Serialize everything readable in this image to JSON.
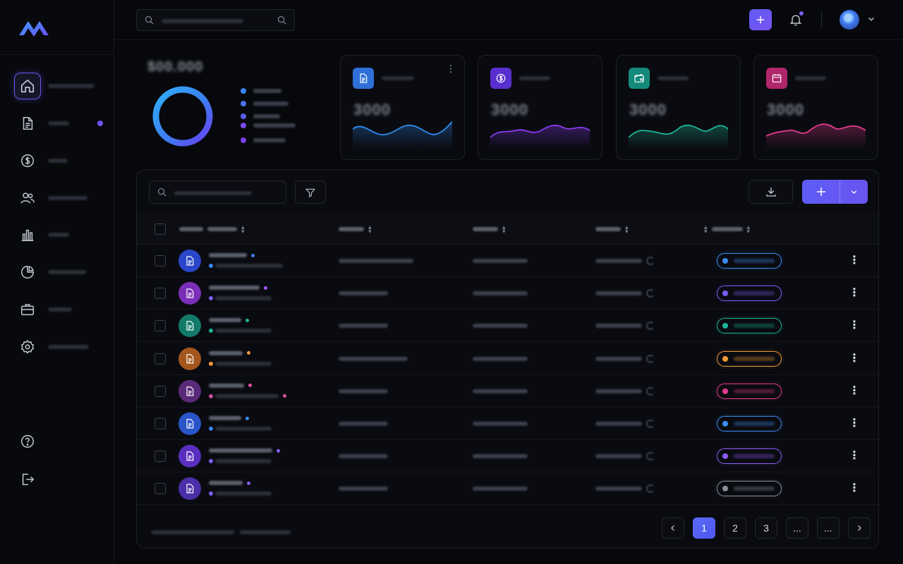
{
  "colors": {
    "accent": "#6b56f0",
    "blue": "#2f8cf0",
    "violet": "#7a4af2",
    "teal": "#1db59a",
    "orange": "#f29a3a",
    "pink": "#e03b8c",
    "gray": "#8a8f99"
  },
  "sidebar": {
    "items": [
      {
        "icon": "home-icon",
        "active": true
      },
      {
        "icon": "document-icon",
        "dot": true
      },
      {
        "icon": "dollar-icon"
      },
      {
        "icon": "users-icon"
      },
      {
        "icon": "bar-chart-icon"
      },
      {
        "icon": "pie-chart-icon"
      },
      {
        "icon": "briefcase-icon"
      },
      {
        "icon": "gear-icon"
      }
    ],
    "bottom": [
      "help-icon",
      "logout-icon"
    ]
  },
  "topbar": {
    "notifications_badge": true
  },
  "summary": {
    "total_blurred": "$00.000",
    "legend_colors": [
      "#3b82f6",
      "#4a72f0",
      "#5b5cf0",
      "#7a4af2",
      "#7b3ff0"
    ]
  },
  "cards": [
    {
      "icon": "document-icon",
      "color": "#2f6fd8",
      "value": "3000",
      "line": "#2f8cf0",
      "has_menu": true
    },
    {
      "icon": "dollar-icon",
      "color": "#5a2fd0",
      "value": "3000",
      "line": "#8a3cf0"
    },
    {
      "icon": "wallet-icon",
      "color": "#138a7a",
      "value": "3000",
      "line": "#1db59a"
    },
    {
      "icon": "calendar-icon",
      "color": "#b0266a",
      "value": "3000",
      "line": "#e03b8c"
    }
  ],
  "table": {
    "rows": [
      {
        "avatar": "#2a47c9",
        "dot": "#3b82f6",
        "status": "#3b8df5"
      },
      {
        "avatar": "#7b2fb8",
        "dot": "#9b5cf5",
        "status": "#7c5cf5"
      },
      {
        "avatar": "#137a6a",
        "dot": "#1db59a",
        "status": "#1db59a"
      },
      {
        "avatar": "#a5561d",
        "dot": "#f29a3a",
        "status": "#f29a3a"
      },
      {
        "avatar": "#5a2a7a",
        "dot": "#e04f9a",
        "status": "#e03b8c"
      },
      {
        "avatar": "#2a55c9",
        "dot": "#3b8df5",
        "status": "#3b8df5"
      },
      {
        "avatar": "#5a2fc0",
        "dot": "#8a5cf5",
        "status": "#8a5cf5"
      },
      {
        "avatar": "#4a2fa8",
        "dot": "#8a5cf5",
        "status": "#8a8f99"
      }
    ]
  },
  "pagination": {
    "pages": [
      "1",
      "2",
      "3",
      "...",
      "..."
    ],
    "active": "1"
  }
}
